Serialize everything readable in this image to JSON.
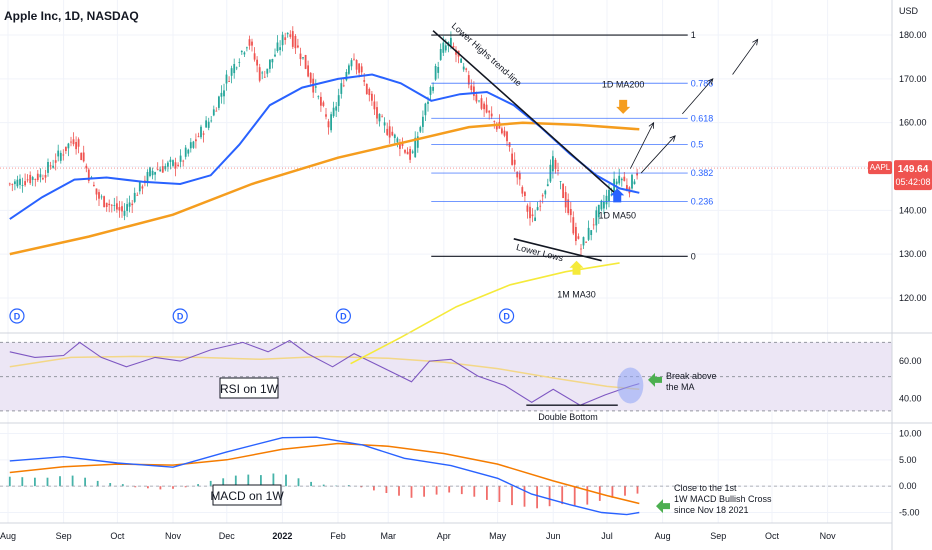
{
  "header": {
    "symbol_title": "Apple Inc, 1D, NASDAQ"
  },
  "colors": {
    "up": "#26a69a",
    "down": "#ef5350",
    "ma50": "#2962ff",
    "ma200": "#f59d1e",
    "ma30w": "#f5ea3a",
    "rsi": "#7e57c2",
    "rsi_ma": "#f3d787",
    "rsi_band": "#ece6f5",
    "macd": "#2962ff",
    "signal": "#f57c00",
    "fib": "#2962ff",
    "text": "#131722",
    "last_price_bg": "#ef5350",
    "arrow_orange": "#f59d1e",
    "arrow_blue": "#2962ff",
    "arrow_yellow": "#f5ea3a",
    "arrow_green": "#4caf50",
    "circle": "#8fa4f5"
  },
  "chart_data": [
    {
      "type": "candlestick",
      "title": "Apple Inc, 1D, NASDAQ",
      "x_ticks": [
        "Aug",
        "Sep",
        "Oct",
        "Nov",
        "Dec",
        "2022",
        "Feb",
        "Mar",
        "Apr",
        "May",
        "Jun",
        "Jul",
        "Aug",
        "Sep",
        "Oct",
        "Nov"
      ],
      "y_axis_label": "USD",
      "y_ticks": [
        120,
        130,
        140,
        150,
        160,
        170,
        180
      ],
      "ylim": [
        112,
        188
      ],
      "last_price": "149.64",
      "countdown": "05:42:08",
      "symbol_tag": "AAPL",
      "price_path": [
        [
          "2021-08-02",
          146
        ],
        [
          "2021-08-20",
          148
        ],
        [
          "2021-09-07",
          156.5
        ],
        [
          "2021-09-20",
          143
        ],
        [
          "2021-10-04",
          139.5
        ],
        [
          "2021-10-20",
          149
        ],
        [
          "2021-11-05",
          151
        ],
        [
          "2021-11-22",
          161
        ],
        [
          "2021-12-01",
          170
        ],
        [
          "2021-12-13",
          179
        ],
        [
          "2021-12-20",
          170
        ],
        [
          "2022-01-04",
          181
        ],
        [
          "2022-01-12",
          175
        ],
        [
          "2022-01-27",
          159
        ],
        [
          "2022-02-09",
          176
        ],
        [
          "2022-02-23",
          161
        ],
        [
          "2022-03-08",
          155
        ],
        [
          "2022-03-14",
          152
        ],
        [
          "2022-03-31",
          177
        ],
        [
          "2022-04-05",
          178
        ],
        [
          "2022-04-20",
          165
        ],
        [
          "2022-05-05",
          157
        ],
        [
          "2022-05-20",
          137
        ],
        [
          "2022-06-01",
          151
        ],
        [
          "2022-06-16",
          131
        ],
        [
          "2022-06-28",
          141
        ],
        [
          "2022-07-08",
          148
        ],
        [
          "2022-07-13",
          145
        ],
        [
          "2022-07-19",
          150
        ]
      ],
      "ma50": [
        [
          "2021-08-02",
          138
        ],
        [
          "2021-08-20",
          143
        ],
        [
          "2021-09-07",
          147
        ],
        [
          "2021-09-25",
          147.5
        ],
        [
          "2021-10-15",
          146.5
        ],
        [
          "2021-11-05",
          146
        ],
        [
          "2021-11-22",
          148
        ],
        [
          "2021-12-08",
          155
        ],
        [
          "2021-12-25",
          164
        ],
        [
          "2022-01-12",
          168
        ],
        [
          "2022-02-01",
          170
        ],
        [
          "2022-02-20",
          171
        ],
        [
          "2022-03-08",
          169
        ],
        [
          "2022-03-25",
          165
        ],
        [
          "2022-04-10",
          166.5
        ],
        [
          "2022-04-25",
          167
        ],
        [
          "2022-05-10",
          164
        ],
        [
          "2022-05-25",
          159
        ],
        [
          "2022-06-10",
          153
        ],
        [
          "2022-06-25",
          148
        ],
        [
          "2022-07-08",
          145
        ],
        [
          "2022-07-19",
          144
        ]
      ],
      "ma200": [
        [
          "2021-08-02",
          130
        ],
        [
          "2021-09-15",
          134
        ],
        [
          "2021-11-01",
          139
        ],
        [
          "2021-12-15",
          146
        ],
        [
          "2022-02-01",
          152
        ],
        [
          "2022-03-15",
          156
        ],
        [
          "2022-04-15",
          159
        ],
        [
          "2022-05-15",
          160
        ],
        [
          "2022-06-15",
          159.5
        ],
        [
          "2022-07-19",
          158.5
        ]
      ],
      "ma30_1m": [
        [
          "2022-02-08",
          105
        ],
        [
          "2022-03-08",
          111
        ],
        [
          "2022-04-08",
          118
        ],
        [
          "2022-05-08",
          123
        ],
        [
          "2022-06-08",
          126
        ],
        [
          "2022-07-08",
          128
        ]
      ],
      "fib_levels": [
        {
          "label": "1",
          "value": 180
        },
        {
          "label": "0.786",
          "value": 169
        },
        {
          "label": "0.618",
          "value": 161
        },
        {
          "label": "0.5",
          "value": 155
        },
        {
          "label": "0.382",
          "value": 148.5
        },
        {
          "label": "0.236",
          "value": 142
        },
        {
          "label": "0",
          "value": 129.5
        }
      ],
      "fib_start": "2022-03-25",
      "fib_end": "2022-08-15",
      "trend_lines": [
        {
          "from": [
            "2022-03-26",
            181
          ],
          "to": [
            "2022-07-08",
            143
          ],
          "label": "Lower Highs trend-line"
        },
        {
          "from": [
            "2022-05-10",
            133.5
          ],
          "to": [
            "2022-06-28",
            128.5
          ],
          "label": "Lower Lows"
        }
      ],
      "projection_arrows": [
        {
          "from": [
            "2022-07-14",
            149.5
          ],
          "to": [
            "2022-07-27",
            160
          ]
        },
        {
          "from": [
            "2022-07-20",
            148.5
          ],
          "to": [
            "2022-08-08",
            157
          ]
        },
        {
          "from": [
            "2022-08-12",
            162
          ],
          "to": [
            "2022-08-29",
            170
          ]
        },
        {
          "from": [
            "2022-09-09",
            171
          ],
          "to": [
            "2022-09-23",
            179
          ]
        }
      ],
      "annotations": [
        {
          "text": "1D MA200",
          "x": "2022-07-10",
          "y": 169
        },
        {
          "text": "1D MA50",
          "x": "2022-06-30",
          "y": 139
        },
        {
          "text": "1M MA30",
          "x": "2022-06-14",
          "y": 121
        }
      ],
      "dividend_markers": [
        "2021-08-06",
        "2021-11-05",
        "2022-02-04",
        "2022-05-06"
      ],
      "dividend_label": "D"
    },
    {
      "type": "line",
      "title": "RSI on 1W",
      "y_ticks": [
        40,
        60
      ],
      "ylim": [
        27,
        75
      ],
      "band": [
        33.5,
        70
      ],
      "rsi": [
        [
          "2021-08-02",
          65
        ],
        [
          "2021-08-16",
          62
        ],
        [
          "2021-09-01",
          63
        ],
        [
          "2021-09-10",
          70
        ],
        [
          "2021-09-22",
          62
        ],
        [
          "2021-10-06",
          57
        ],
        [
          "2021-10-22",
          62
        ],
        [
          "2021-11-05",
          60
        ],
        [
          "2021-11-22",
          66
        ],
        [
          "2021-12-10",
          70
        ],
        [
          "2021-12-24",
          65
        ],
        [
          "2022-01-05",
          71
        ],
        [
          "2022-01-15",
          64
        ],
        [
          "2022-01-29",
          57
        ],
        [
          "2022-02-10",
          64
        ],
        [
          "2022-02-25",
          57
        ],
        [
          "2022-03-14",
          49
        ],
        [
          "2022-03-24",
          60
        ],
        [
          "2022-04-05",
          61
        ],
        [
          "2022-04-20",
          52
        ],
        [
          "2022-05-05",
          47
        ],
        [
          "2022-05-20",
          38
        ],
        [
          "2022-06-01",
          45
        ],
        [
          "2022-06-16",
          36.5
        ],
        [
          "2022-06-30",
          42
        ],
        [
          "2022-07-12",
          46
        ],
        [
          "2022-07-19",
          48
        ]
      ],
      "rsi_ma": [
        [
          "2021-08-02",
          57
        ],
        [
          "2021-09-05",
          62
        ],
        [
          "2021-10-10",
          62.5
        ],
        [
          "2021-11-15",
          62
        ],
        [
          "2021-12-20",
          61
        ],
        [
          "2022-01-25",
          62.5
        ],
        [
          "2022-03-01",
          61.5
        ],
        [
          "2022-04-01",
          59.5
        ],
        [
          "2022-05-01",
          56
        ],
        [
          "2022-06-01",
          51
        ],
        [
          "2022-07-01",
          46.5
        ],
        [
          "2022-07-19",
          45
        ]
      ],
      "double_bottom_line": {
        "from": "2022-05-17",
        "to": "2022-07-07",
        "value": 36.5
      },
      "annotations": [
        {
          "text": "Double Bottom"
        },
        {
          "text": "Break above"
        },
        {
          "text": "the MA"
        }
      ]
    },
    {
      "type": "line",
      "title": "MACD on 1W",
      "y_ticks": [
        -5.0,
        0.0,
        5.0,
        10.0
      ],
      "y_tick_labels": [
        "-5.00",
        "0.00",
        "5.00",
        "10.00"
      ],
      "ylim": [
        -7,
        12
      ],
      "macd": [
        [
          "2021-08-02",
          4.8
        ],
        [
          "2021-09-01",
          5.6
        ],
        [
          "2021-10-01",
          4.4
        ],
        [
          "2021-11-01",
          3.6
        ],
        [
          "2021-12-01",
          6.5
        ],
        [
          "2022-01-01",
          9.2
        ],
        [
          "2022-01-20",
          9.3
        ],
        [
          "2022-02-15",
          7.8
        ],
        [
          "2022-03-10",
          5.3
        ],
        [
          "2022-04-05",
          3.9
        ],
        [
          "2022-05-01",
          1.5
        ],
        [
          "2022-05-20",
          -1.5
        ],
        [
          "2022-06-10",
          -3.5
        ],
        [
          "2022-06-28",
          -5.0
        ],
        [
          "2022-07-12",
          -5.4
        ],
        [
          "2022-07-19",
          -5.0
        ]
      ],
      "signal": [
        [
          "2021-08-02",
          2.6
        ],
        [
          "2021-09-01",
          3.7
        ],
        [
          "2021-10-01",
          4.2
        ],
        [
          "2021-11-01",
          4.0
        ],
        [
          "2021-12-01",
          5.0
        ],
        [
          "2022-01-01",
          7.0
        ],
        [
          "2022-02-01",
          8.1
        ],
        [
          "2022-03-01",
          7.6
        ],
        [
          "2022-04-01",
          6.2
        ],
        [
          "2022-05-01",
          4.2
        ],
        [
          "2022-06-01",
          1.0
        ],
        [
          "2022-07-01",
          -1.8
        ],
        [
          "2022-07-19",
          -3.3
        ]
      ],
      "histogram": [
        [
          "2021-08-02",
          1.8
        ],
        [
          "2021-08-09",
          1.7
        ],
        [
          "2021-08-16",
          1.6
        ],
        [
          "2021-08-23",
          1.6
        ],
        [
          "2021-08-30",
          1.9
        ],
        [
          "2021-09-06",
          2.0
        ],
        [
          "2021-09-13",
          1.6
        ],
        [
          "2021-09-20",
          1.0
        ],
        [
          "2021-09-27",
          0.6
        ],
        [
          "2021-10-04",
          0.4
        ],
        [
          "2021-10-11",
          -0.2
        ],
        [
          "2021-10-18",
          -0.4
        ],
        [
          "2021-10-25",
          -0.6
        ],
        [
          "2021-11-01",
          -0.5
        ],
        [
          "2021-11-08",
          -0.2
        ],
        [
          "2021-11-15",
          0.4
        ],
        [
          "2021-11-22",
          1.0
        ],
        [
          "2021-11-29",
          1.5
        ],
        [
          "2021-12-06",
          2.0
        ],
        [
          "2021-12-13",
          2.2
        ],
        [
          "2021-12-20",
          2.1
        ],
        [
          "2021-12-27",
          2.4
        ],
        [
          "2022-01-03",
          2.2
        ],
        [
          "2022-01-10",
          1.5
        ],
        [
          "2022-01-17",
          0.8
        ],
        [
          "2022-01-24",
          0.3
        ],
        [
          "2022-01-31",
          0.1
        ],
        [
          "2022-02-07",
          0.2
        ],
        [
          "2022-02-14",
          -0.2
        ],
        [
          "2022-02-21",
          -0.8
        ],
        [
          "2022-02-28",
          -1.3
        ],
        [
          "2022-03-07",
          -1.8
        ],
        [
          "2022-03-14",
          -2.2
        ],
        [
          "2022-03-21",
          -2.0
        ],
        [
          "2022-03-28",
          -1.6
        ],
        [
          "2022-04-04",
          -1.2
        ],
        [
          "2022-04-11",
          -1.5
        ],
        [
          "2022-04-18",
          -2.0
        ],
        [
          "2022-04-25",
          -2.6
        ],
        [
          "2022-05-02",
          -3.0
        ],
        [
          "2022-05-09",
          -3.6
        ],
        [
          "2022-05-16",
          -3.9
        ],
        [
          "2022-05-23",
          -4.2
        ],
        [
          "2022-05-30",
          -3.8
        ],
        [
          "2022-06-06",
          -3.4
        ],
        [
          "2022-06-13",
          -3.8
        ],
        [
          "2022-06-20",
          -3.5
        ],
        [
          "2022-06-27",
          -2.8
        ],
        [
          "2022-07-04",
          -2.2
        ],
        [
          "2022-07-11",
          -1.8
        ],
        [
          "2022-07-18",
          -1.4
        ]
      ],
      "annotations": [
        {
          "text": "Close to the 1st"
        },
        {
          "text": "1W MACD Bullish Cross"
        },
        {
          "text": "since Nov 18 2021"
        }
      ]
    }
  ]
}
